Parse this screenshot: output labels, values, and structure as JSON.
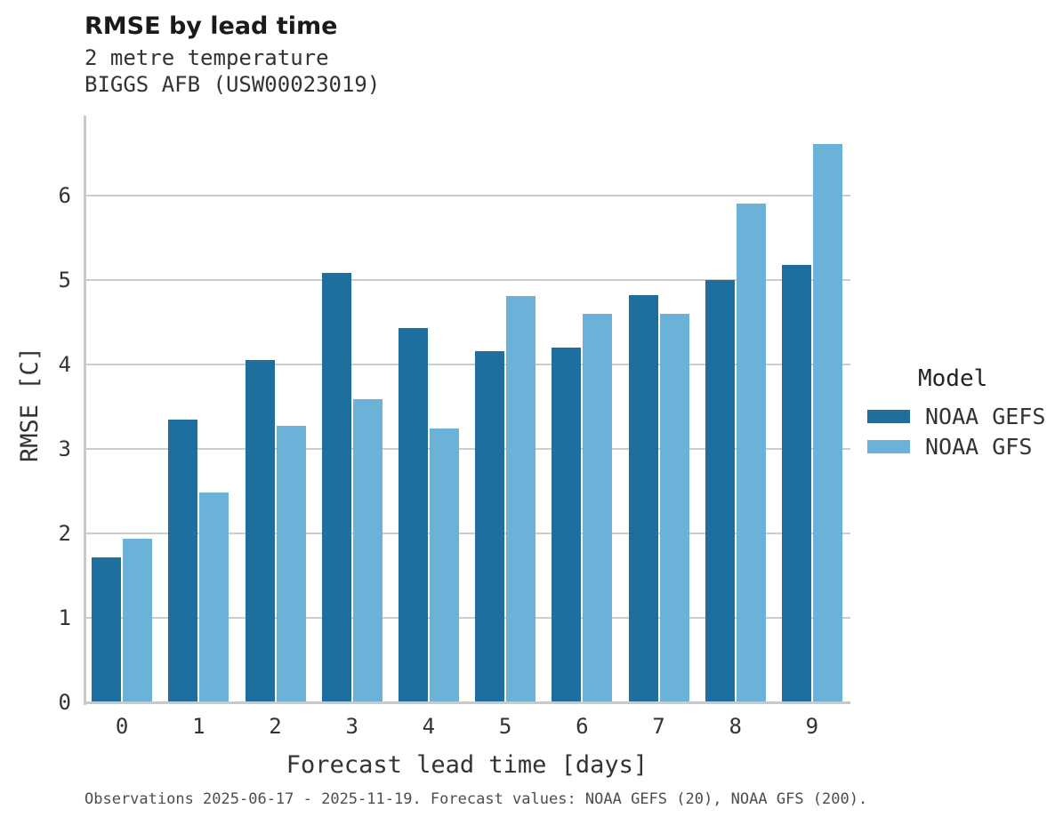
{
  "header": {
    "title": "RMSE by lead time",
    "subtitle_line1": "2 metre temperature",
    "subtitle_line2": "BIGGS AFB (USW00023019)"
  },
  "caption": "Observations 2025-06-17 - 2025-11-19. Forecast values: NOAA GEFS (20), NOAA GFS (200).",
  "legend": {
    "title": "Model",
    "items": [
      {
        "label": "NOAA GEFS",
        "color": "#1d6fa0"
      },
      {
        "label": "NOAA GFS",
        "color": "#6ab2d8"
      }
    ]
  },
  "colors": {
    "gefs_bar": "#1d6fa0",
    "gfs_bar": "#6ab2d8",
    "gridline": "#cccccc",
    "spine": "#c9c9c9"
  },
  "chart_data": {
    "type": "bar",
    "title": "RMSE by lead time",
    "subtitle": "2 metre temperature — BIGGS AFB (USW00023019)",
    "xlabel": "Forecast lead time [days]",
    "ylabel": "RMSE [C]",
    "categories": [
      "0",
      "1",
      "2",
      "3",
      "4",
      "5",
      "6",
      "7",
      "8",
      "9"
    ],
    "series": [
      {
        "name": "NOAA GEFS",
        "color": "#1d6fa0",
        "values": [
          1.72,
          3.35,
          4.05,
          5.09,
          4.43,
          4.16,
          4.2,
          4.82,
          5.0,
          5.18
        ]
      },
      {
        "name": "NOAA GFS",
        "color": "#6ab2d8",
        "values": [
          1.94,
          2.49,
          3.27,
          3.59,
          3.24,
          4.81,
          4.6,
          4.6,
          5.91,
          6.61
        ]
      }
    ],
    "yticks": [
      0,
      1,
      2,
      3,
      4,
      5,
      6
    ],
    "ylim": [
      0,
      6.95
    ],
    "grid": true,
    "legend_position": "right",
    "legend_title": "Model"
  }
}
